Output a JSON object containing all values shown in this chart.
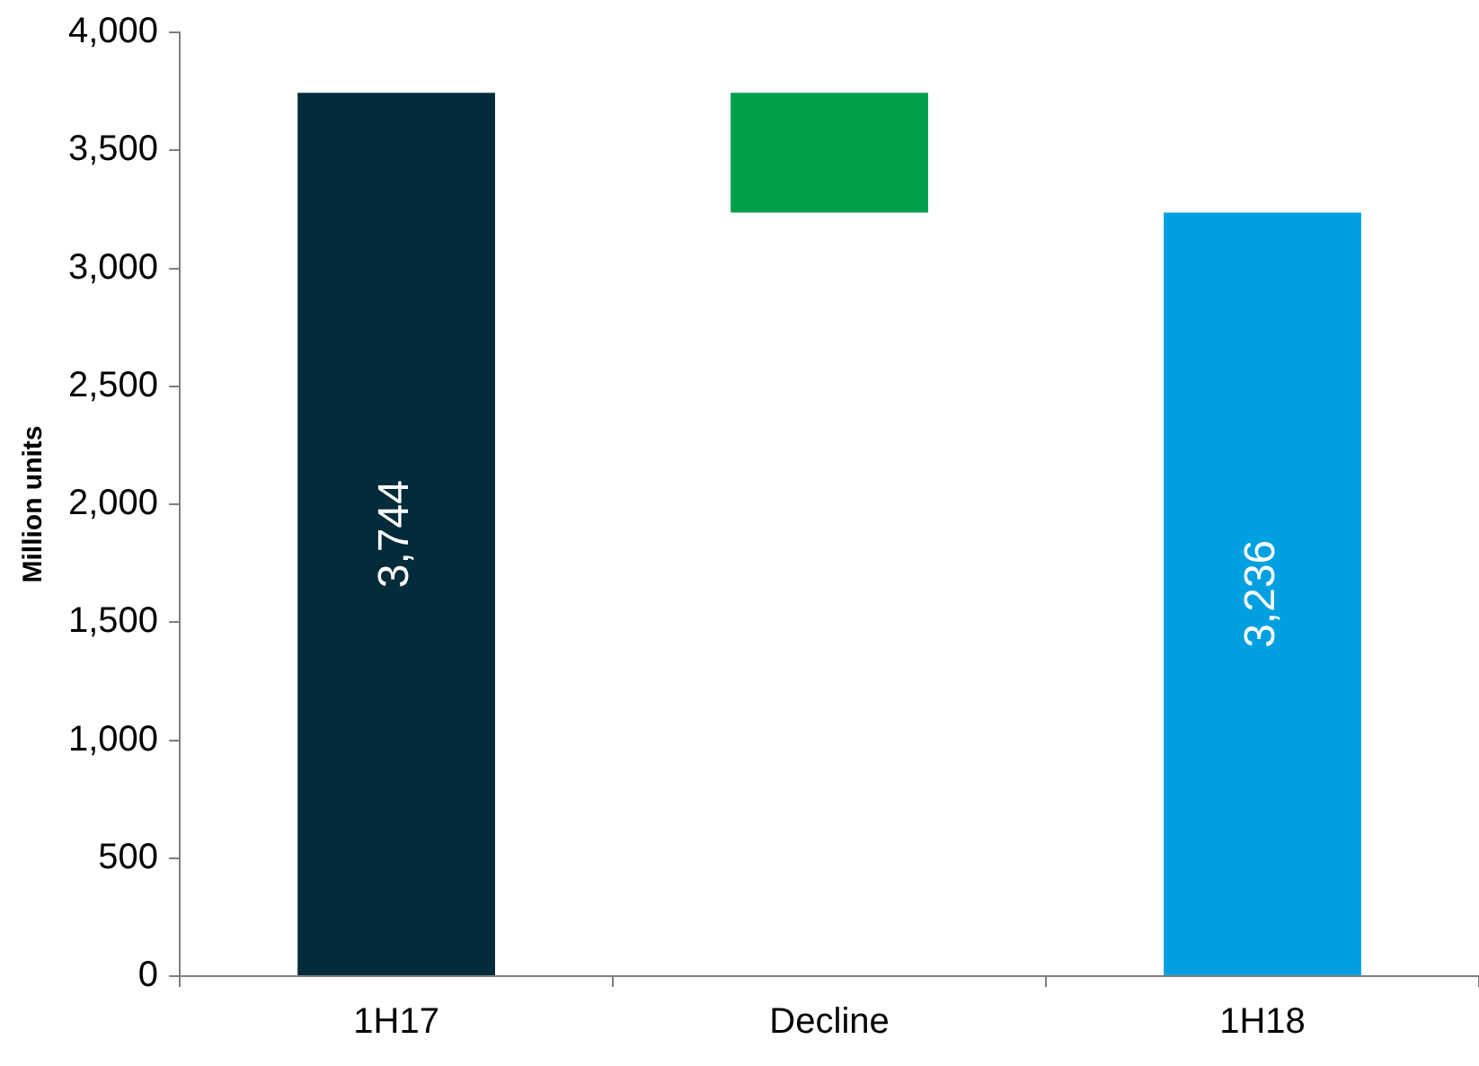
{
  "chart_data": {
    "type": "bar",
    "ylabel": "Million units",
    "categories": [
      "1H17",
      "Decline",
      "1H18"
    ],
    "values": [
      3744,
      508,
      3236
    ],
    "base": [
      0,
      3236,
      0
    ],
    "colors": [
      "#022c3a",
      "#00a04b",
      "#00a0e0"
    ],
    "value_labels": [
      "3,744",
      null,
      "3,236"
    ],
    "ylim": [
      0,
      4000
    ],
    "yticks": [
      {
        "value": 0,
        "label": "0"
      },
      {
        "value": 500,
        "label": "500"
      },
      {
        "value": 1000,
        "label": "1,000"
      },
      {
        "value": 1500,
        "label": "1,500"
      },
      {
        "value": 2000,
        "label": "2,000"
      },
      {
        "value": 2500,
        "label": "2,500"
      },
      {
        "value": 3000,
        "label": "3,000"
      },
      {
        "value": 3500,
        "label": "3,500"
      },
      {
        "value": 4000,
        "label": "4,000"
      }
    ]
  }
}
